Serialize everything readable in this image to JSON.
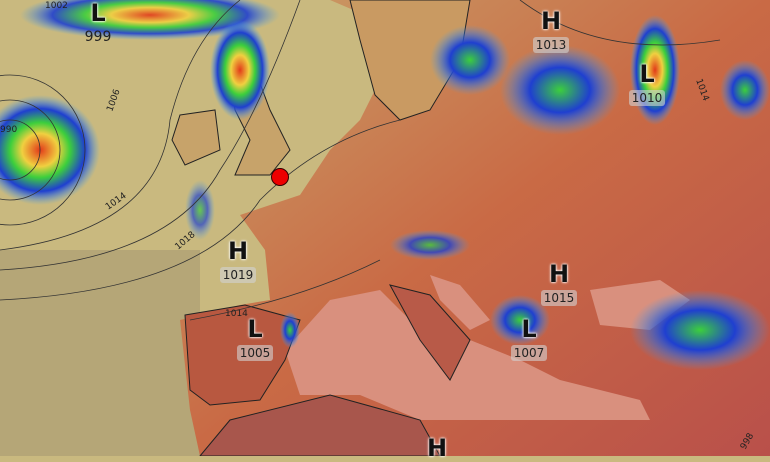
{
  "map": {
    "pressure_centers": [
      {
        "type": "L",
        "value": "999"
      },
      {
        "type": "H",
        "value": "1013"
      },
      {
        "type": "L",
        "value": "1010"
      },
      {
        "type": "H",
        "value": "1019"
      },
      {
        "type": "L",
        "value": "1005"
      },
      {
        "type": "H",
        "value": "1015"
      },
      {
        "type": "L",
        "value": "1007"
      },
      {
        "type": "H",
        "value": ""
      }
    ],
    "isobar_labels": [
      "1002",
      "1006",
      "1014",
      "1018",
      "990",
      "1014",
      "1014",
      "998"
    ],
    "marker": {
      "color": "#e00000"
    },
    "colors": {
      "sea": "#c9b97f",
      "land": "#c8754a",
      "mediterranean": "#d9907e",
      "precip_blue": "#1f3fd0",
      "precip_green": "#3ccf3c",
      "precip_red": "#e23a1a"
    }
  }
}
